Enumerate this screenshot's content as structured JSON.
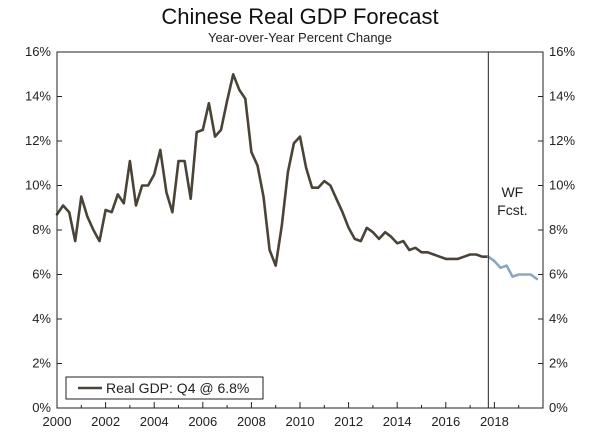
{
  "header": {
    "title": "Chinese Real GDP Forecast",
    "subtitle": "Year-over-Year Percent Change"
  },
  "chart_data": {
    "type": "line",
    "title": "Chinese Real GDP Forecast",
    "subtitle": "Year-over-Year Percent Change",
    "xlabel": "",
    "ylabel": "",
    "xlim": [
      2000,
      2020
    ],
    "ylim": [
      0,
      16
    ],
    "x_ticks": [
      2000,
      2002,
      2004,
      2006,
      2008,
      2010,
      2012,
      2014,
      2016,
      2018
    ],
    "x_tick_labels": [
      "2000",
      "2002",
      "2004",
      "2006",
      "2008",
      "2010",
      "2012",
      "2014",
      "2016",
      "2018"
    ],
    "y_ticks": [
      0,
      2,
      4,
      6,
      8,
      10,
      12,
      14,
      16
    ],
    "y_tick_labels": [
      "0%",
      "2%",
      "4%",
      "6%",
      "8%",
      "10%",
      "12%",
      "14%",
      "16%"
    ],
    "forecast_start": 2017.75,
    "annotation": "WF\nFcst.",
    "legend": {
      "position": "bottom-left",
      "label": "Real GDP: Q4 @ 6.8%"
    },
    "colors": {
      "actual": "#4a4338",
      "forecast": "#8aa6c1",
      "axis": "#222222"
    },
    "series": [
      {
        "name": "Real GDP: Q4 @ 6.8%",
        "x": [
          2000.0,
          2000.25,
          2000.5,
          2000.75,
          2001.0,
          2001.25,
          2001.5,
          2001.75,
          2002.0,
          2002.25,
          2002.5,
          2002.75,
          2003.0,
          2003.25,
          2003.5,
          2003.75,
          2004.0,
          2004.25,
          2004.5,
          2004.75,
          2005.0,
          2005.25,
          2005.5,
          2005.75,
          2006.0,
          2006.25,
          2006.5,
          2006.75,
          2007.0,
          2007.25,
          2007.5,
          2007.75,
          2008.0,
          2008.25,
          2008.5,
          2008.75,
          2009.0,
          2009.25,
          2009.5,
          2009.75,
          2010.0,
          2010.25,
          2010.5,
          2010.75,
          2011.0,
          2011.25,
          2011.5,
          2011.75,
          2012.0,
          2012.25,
          2012.5,
          2012.75,
          2013.0,
          2013.25,
          2013.5,
          2013.75,
          2014.0,
          2014.25,
          2014.5,
          2014.75,
          2015.0,
          2015.25,
          2015.5,
          2015.75,
          2016.0,
          2016.25,
          2016.5,
          2016.75,
          2017.0,
          2017.25,
          2017.5,
          2017.75
        ],
        "values": [
          8.7,
          9.1,
          8.8,
          7.5,
          9.5,
          8.6,
          8.0,
          7.5,
          8.9,
          8.8,
          9.6,
          9.2,
          11.1,
          9.1,
          10.0,
          10.0,
          10.5,
          11.6,
          9.7,
          8.8,
          11.1,
          11.1,
          9.4,
          12.4,
          12.5,
          13.7,
          12.2,
          12.5,
          13.8,
          15.0,
          14.3,
          13.9,
          11.5,
          10.9,
          9.5,
          7.1,
          6.4,
          8.2,
          10.6,
          11.9,
          12.2,
          10.8,
          9.9,
          9.9,
          10.2,
          10.0,
          9.4,
          8.8,
          8.1,
          7.6,
          7.5,
          8.1,
          7.9,
          7.6,
          7.9,
          7.7,
          7.4,
          7.5,
          7.1,
          7.2,
          7.0,
          7.0,
          6.9,
          6.8,
          6.7,
          6.7,
          6.7,
          6.8,
          6.9,
          6.9,
          6.8,
          6.8
        ]
      },
      {
        "name": "WF Forecast",
        "x": [
          2017.75,
          2018.0,
          2018.25,
          2018.5,
          2018.75,
          2019.0,
          2019.25,
          2019.5,
          2019.75
        ],
        "values": [
          6.8,
          6.6,
          6.3,
          6.4,
          5.9,
          6.0,
          6.0,
          6.0,
          5.8
        ]
      }
    ]
  }
}
